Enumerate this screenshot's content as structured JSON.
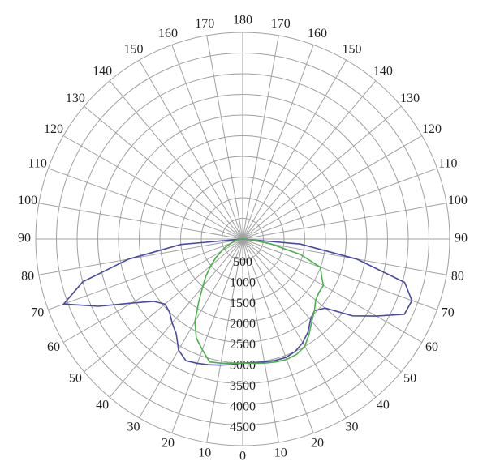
{
  "chart_data": {
    "type": "polar",
    "x": [
      -90,
      -85,
      -80,
      -75,
      -70,
      -65,
      -60,
      -55,
      -50,
      -45,
      -40,
      -35,
      -30,
      -25,
      -20,
      -15,
      -10,
      -5,
      0,
      5,
      10,
      15,
      20,
      25,
      30,
      35,
      40,
      45,
      50,
      55,
      60,
      65,
      70,
      75,
      80,
      85,
      90
    ],
    "series": [
      {
        "color": "#4a4aa6",
        "values": [
          0,
          1500,
          2800,
          4000,
          4600,
          3850,
          3100,
          2630,
          2450,
          2500,
          2650,
          2800,
          3100,
          3250,
          3200,
          3150,
          3100,
          3050,
          3000,
          3000,
          3020,
          3040,
          3050,
          3000,
          2900,
          2750,
          2550,
          2450,
          2600,
          3240,
          3730,
          4310,
          4350,
          4050,
          2800,
          1400,
          0
        ]
      },
      {
        "color": "#4cb04c",
        "values": [
          0,
          80,
          150,
          220,
          300,
          450,
          600,
          800,
          1000,
          1250,
          1500,
          1850,
          2310,
          2650,
          2850,
          3080,
          3050,
          3020,
          3000,
          3020,
          3050,
          3080,
          3100,
          3080,
          3000,
          2800,
          2600,
          2450,
          2300,
          2250,
          2250,
          2100,
          2000,
          1440,
          700,
          300,
          0
        ]
      }
    ],
    "rlim": [
      0,
      5000
    ],
    "rticks": [
      500,
      1000,
      1500,
      2000,
      2500,
      3000,
      3500,
      4000,
      4500
    ],
    "thetaticks": [
      0,
      10,
      20,
      30,
      40,
      50,
      60,
      70,
      80,
      90,
      100,
      110,
      120,
      130,
      140,
      150,
      160,
      170,
      180
    ],
    "grid": true
  }
}
